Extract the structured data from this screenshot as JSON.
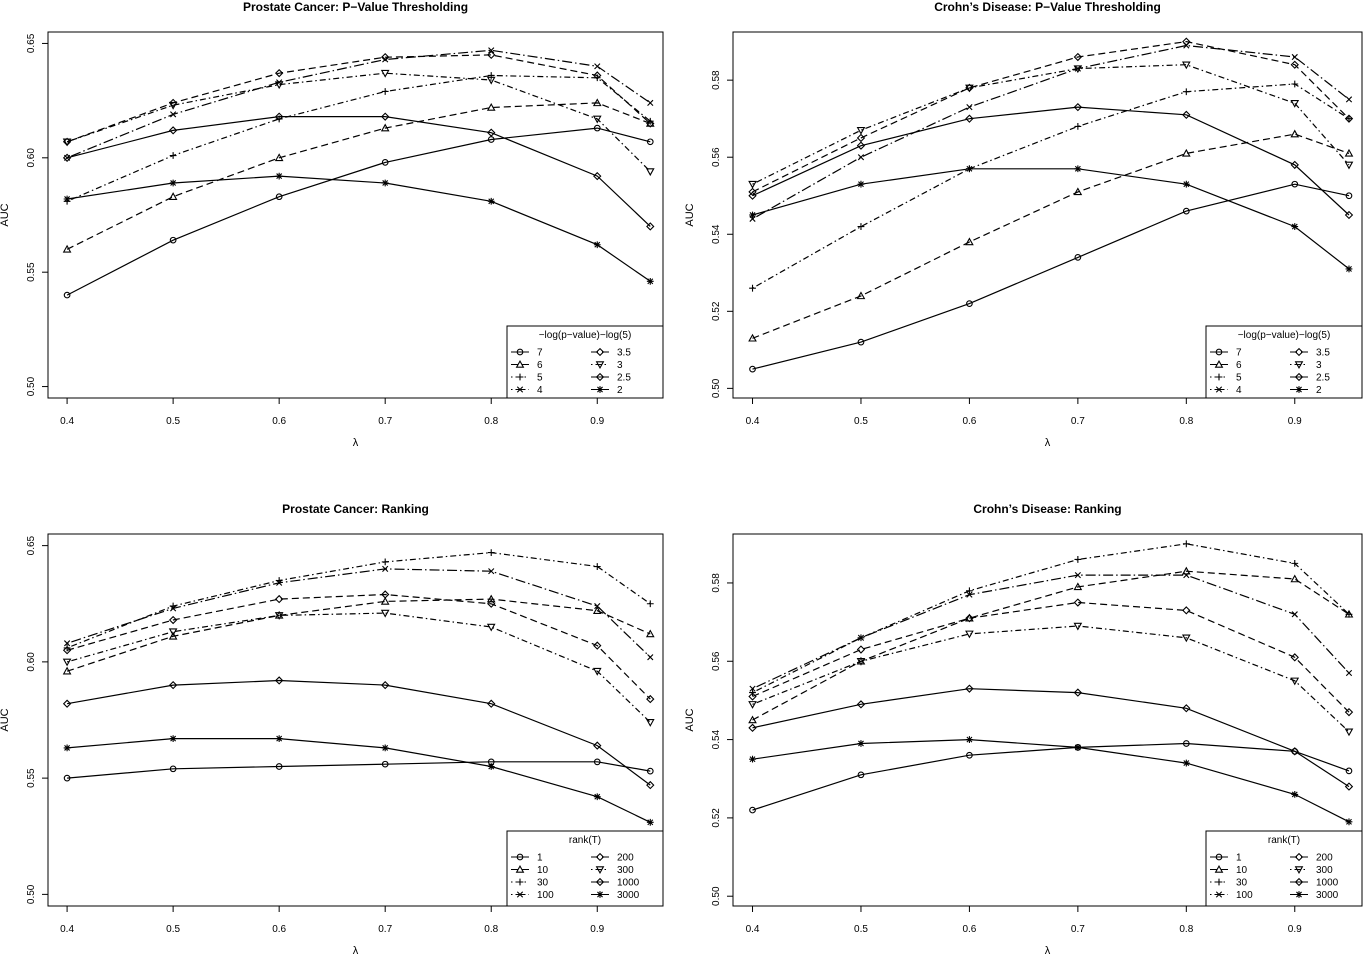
{
  "chart_data": [
    {
      "type": "line",
      "title": "Prostate Cancer: P−Value Thresholding",
      "xlabel": "λ",
      "ylabel": "AUC",
      "x": [
        0.4,
        0.5,
        0.6,
        0.7,
        0.8,
        0.9,
        0.95
      ],
      "xticks": [
        "0.4",
        "0.5",
        "0.6",
        "0.7",
        "0.8",
        "0.9"
      ],
      "ylim": [
        0.495,
        0.655
      ],
      "yticks": [
        "0.50",
        "0.55",
        "0.60",
        "0.65"
      ],
      "grid": false,
      "legend_position": "bottom-right",
      "legend_title": "−log(p−value)−log(5)",
      "series": [
        {
          "name": "7",
          "marker": "circle",
          "dash": "solid",
          "values": [
            0.54,
            0.564,
            0.583,
            0.598,
            0.608,
            0.613,
            0.607
          ]
        },
        {
          "name": "6",
          "marker": "triangle",
          "dash": "dashed",
          "values": [
            0.56,
            0.583,
            0.6,
            0.613,
            0.622,
            0.624,
            0.615
          ]
        },
        {
          "name": "5",
          "marker": "plus",
          "dash": "dotdash",
          "values": [
            0.581,
            0.601,
            0.617,
            0.629,
            0.636,
            0.635,
            0.616
          ]
        },
        {
          "name": "4",
          "marker": "cross",
          "dash": "dotdash-long",
          "values": [
            0.6,
            0.619,
            0.633,
            0.643,
            0.647,
            0.64,
            0.624
          ]
        },
        {
          "name": "3.5",
          "marker": "diamond",
          "dash": "dashed",
          "values": [
            0.607,
            0.624,
            0.637,
            0.644,
            0.645,
            0.636,
            0.615
          ]
        },
        {
          "name": "3",
          "marker": "triangle-down",
          "dash": "dotdash",
          "values": [
            0.607,
            0.623,
            0.632,
            0.637,
            0.634,
            0.617,
            0.594
          ]
        },
        {
          "name": "2.5",
          "marker": "diamond",
          "dash": "solid",
          "values": [
            0.6,
            0.612,
            0.618,
            0.618,
            0.611,
            0.592,
            0.57
          ]
        },
        {
          "name": "2",
          "marker": "star",
          "dash": "solid",
          "values": [
            0.582,
            0.589,
            0.592,
            0.589,
            0.581,
            0.562,
            0.546
          ]
        }
      ]
    },
    {
      "type": "line",
      "title": "Crohn’s Disease: P−Value Thresholding",
      "xlabel": "λ",
      "ylabel": "AUC",
      "x": [
        0.4,
        0.5,
        0.6,
        0.7,
        0.8,
        0.9,
        0.95
      ],
      "xticks": [
        "0.4",
        "0.5",
        "0.6",
        "0.7",
        "0.8",
        "0.9"
      ],
      "ylim": [
        0.4975,
        0.5925
      ],
      "yticks": [
        "0.50",
        "0.52",
        "0.54",
        "0.56",
        "0.58"
      ],
      "grid": false,
      "legend_position": "bottom-right",
      "legend_title": "−log(p−value)−log(5)",
      "series": [
        {
          "name": "7",
          "marker": "circle",
          "dash": "solid",
          "values": [
            0.505,
            0.512,
            0.522,
            0.534,
            0.546,
            0.553,
            0.55
          ]
        },
        {
          "name": "6",
          "marker": "triangle",
          "dash": "dashed",
          "values": [
            0.513,
            0.524,
            0.538,
            0.551,
            0.561,
            0.566,
            0.561
          ]
        },
        {
          "name": "5",
          "marker": "plus",
          "dash": "dotdash",
          "values": [
            0.526,
            0.542,
            0.557,
            0.568,
            0.577,
            0.579,
            0.57
          ]
        },
        {
          "name": "4",
          "marker": "cross",
          "dash": "dotdash-long",
          "values": [
            0.544,
            0.56,
            0.573,
            0.583,
            0.589,
            0.586,
            0.575
          ]
        },
        {
          "name": "3.5",
          "marker": "diamond",
          "dash": "dashed",
          "values": [
            0.551,
            0.565,
            0.578,
            0.586,
            0.59,
            0.584,
            0.57
          ]
        },
        {
          "name": "3",
          "marker": "triangle-down",
          "dash": "dotdash",
          "values": [
            0.553,
            0.567,
            0.578,
            0.583,
            0.584,
            0.574,
            0.558
          ]
        },
        {
          "name": "2.5",
          "marker": "diamond",
          "dash": "solid",
          "values": [
            0.55,
            0.563,
            0.57,
            0.573,
            0.571,
            0.558,
            0.545
          ]
        },
        {
          "name": "2",
          "marker": "star",
          "dash": "solid",
          "values": [
            0.545,
            0.553,
            0.557,
            0.557,
            0.553,
            0.542,
            0.531
          ]
        }
      ]
    },
    {
      "type": "line",
      "title": "Prostate Cancer: Ranking",
      "xlabel": "λ",
      "ylabel": "AUC",
      "x": [
        0.4,
        0.5,
        0.6,
        0.7,
        0.8,
        0.9,
        0.95
      ],
      "xticks": [
        "0.4",
        "0.5",
        "0.6",
        "0.7",
        "0.8",
        "0.9"
      ],
      "ylim": [
        0.495,
        0.655
      ],
      "yticks": [
        "0.50",
        "0.55",
        "0.60",
        "0.65"
      ],
      "grid": false,
      "legend_position": "bottom-right",
      "legend_title": "rank(T)",
      "series": [
        {
          "name": "1",
          "marker": "circle",
          "dash": "solid",
          "values": [
            0.55,
            0.554,
            0.555,
            0.556,
            0.557,
            0.557,
            0.553
          ]
        },
        {
          "name": "10",
          "marker": "triangle",
          "dash": "dashed",
          "values": [
            0.596,
            0.611,
            0.62,
            0.626,
            0.627,
            0.622,
            0.612
          ]
        },
        {
          "name": "30",
          "marker": "plus",
          "dash": "dotdash",
          "values": [
            0.606,
            0.624,
            0.635,
            0.643,
            0.647,
            0.641,
            0.625
          ]
        },
        {
          "name": "100",
          "marker": "cross",
          "dash": "dotdash-long",
          "values": [
            0.608,
            0.623,
            0.634,
            0.64,
            0.639,
            0.624,
            0.602
          ]
        },
        {
          "name": "200",
          "marker": "diamond",
          "dash": "dashed",
          "values": [
            0.605,
            0.618,
            0.627,
            0.629,
            0.625,
            0.607,
            0.584
          ]
        },
        {
          "name": "300",
          "marker": "triangle-down",
          "dash": "dotdash",
          "values": [
            0.6,
            0.613,
            0.62,
            0.621,
            0.615,
            0.596,
            0.574
          ]
        },
        {
          "name": "1000",
          "marker": "diamond",
          "dash": "solid",
          "values": [
            0.582,
            0.59,
            0.592,
            0.59,
            0.582,
            0.564,
            0.547
          ]
        },
        {
          "name": "3000",
          "marker": "star",
          "dash": "solid",
          "values": [
            0.563,
            0.567,
            0.567,
            0.563,
            0.555,
            0.542,
            0.531
          ]
        }
      ]
    },
    {
      "type": "line",
      "title": "Crohn’s Disease: Ranking",
      "xlabel": "λ",
      "ylabel": "AUC",
      "x": [
        0.4,
        0.5,
        0.6,
        0.7,
        0.8,
        0.9,
        0.95
      ],
      "xticks": [
        "0.4",
        "0.5",
        "0.6",
        "0.7",
        "0.8",
        "0.9"
      ],
      "ylim": [
        0.4975,
        0.5925
      ],
      "yticks": [
        "0.50",
        "0.52",
        "0.54",
        "0.56",
        "0.58"
      ],
      "grid": false,
      "legend_position": "bottom-right",
      "legend_title": "rank(T)",
      "series": [
        {
          "name": "1",
          "marker": "circle",
          "dash": "solid",
          "values": [
            0.522,
            0.531,
            0.536,
            0.538,
            0.539,
            0.537,
            0.532
          ]
        },
        {
          "name": "10",
          "marker": "triangle",
          "dash": "dashed",
          "values": [
            0.545,
            0.56,
            0.571,
            0.579,
            0.583,
            0.581,
            0.572
          ]
        },
        {
          "name": "30",
          "marker": "plus",
          "dash": "dotdash",
          "values": [
            0.552,
            0.566,
            0.578,
            0.586,
            0.59,
            0.585,
            0.572
          ]
        },
        {
          "name": "100",
          "marker": "cross",
          "dash": "dotdash-long",
          "values": [
            0.553,
            0.566,
            0.577,
            0.582,
            0.582,
            0.572,
            0.557
          ]
        },
        {
          "name": "200",
          "marker": "diamond",
          "dash": "dashed",
          "values": [
            0.551,
            0.563,
            0.571,
            0.575,
            0.573,
            0.561,
            0.547
          ]
        },
        {
          "name": "300",
          "marker": "triangle-down",
          "dash": "dotdash",
          "values": [
            0.549,
            0.56,
            0.567,
            0.569,
            0.566,
            0.555,
            0.542
          ]
        },
        {
          "name": "1000",
          "marker": "diamond",
          "dash": "solid",
          "values": [
            0.543,
            0.549,
            0.553,
            0.552,
            0.548,
            0.537,
            0.528
          ]
        },
        {
          "name": "3000",
          "marker": "star",
          "dash": "solid",
          "values": [
            0.535,
            0.539,
            0.54,
            0.538,
            0.534,
            0.526,
            0.519
          ]
        }
      ]
    }
  ]
}
